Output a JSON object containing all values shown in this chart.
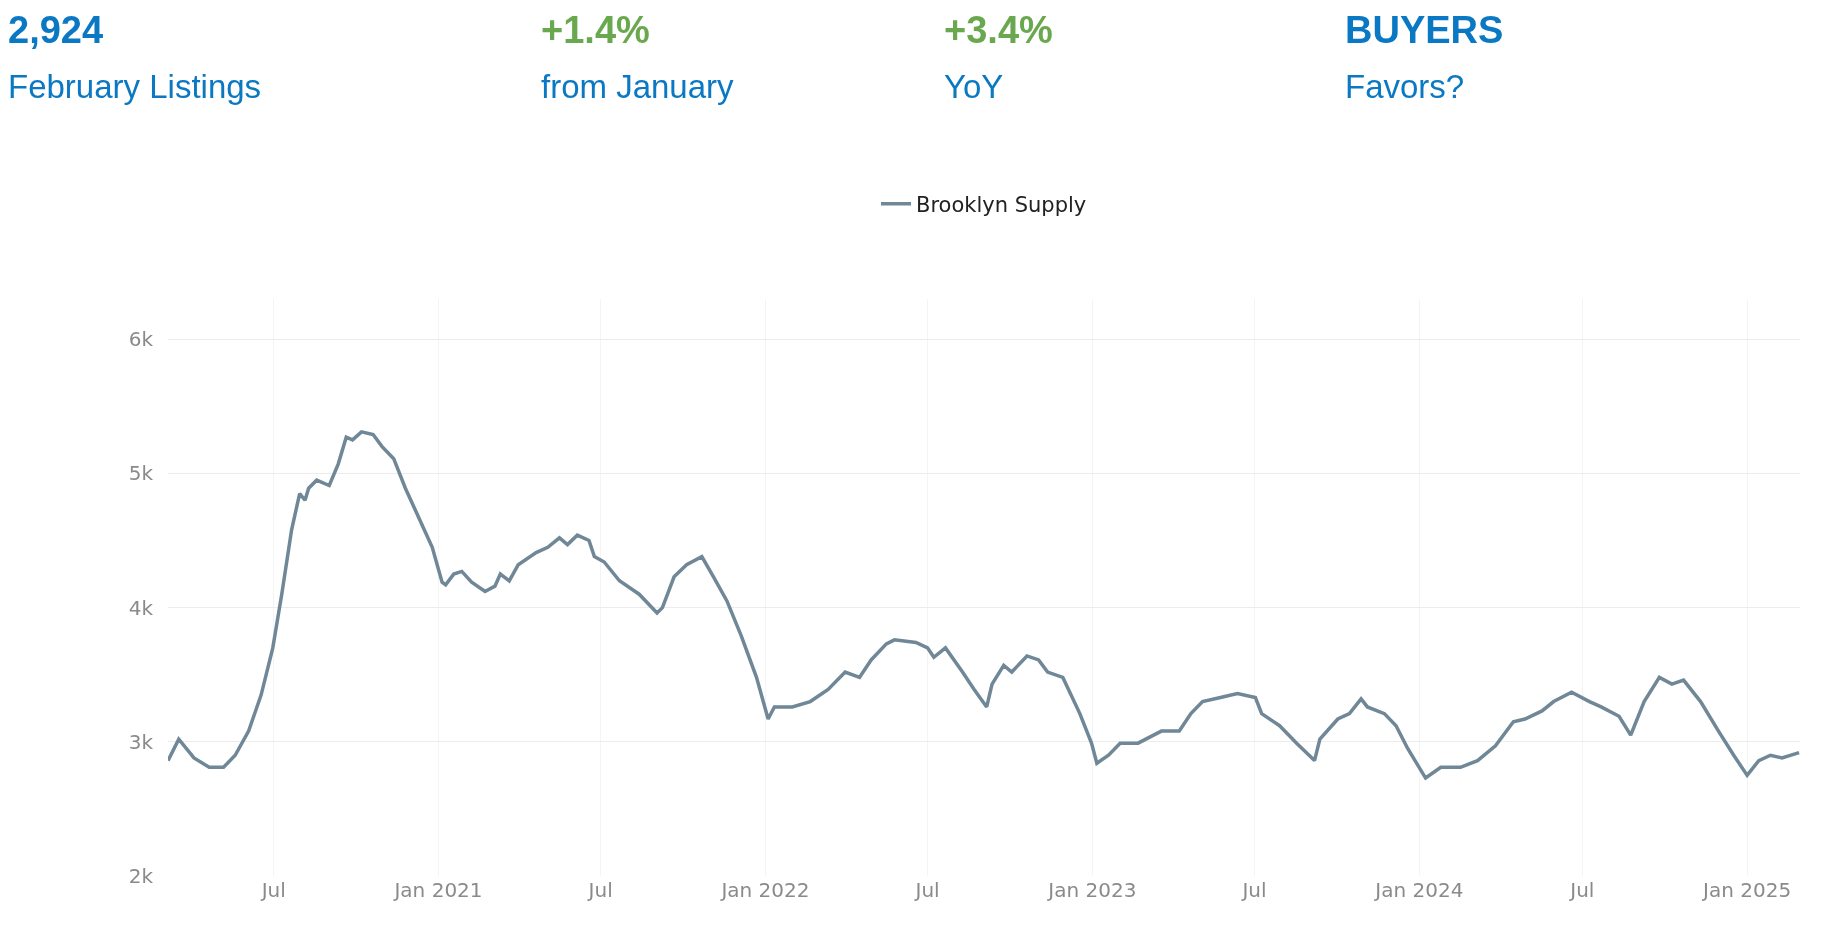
{
  "chart_data": {
    "type": "line",
    "annotations": [
      "2,924",
      "February Listings",
      "+1.4%",
      "from January",
      "+3.4%",
      "YoY",
      "BUYERS",
      "Favors?"
    ],
    "x": [
      "2020-03-05",
      "2020-03-17",
      "2020-04-03",
      "2020-04-20",
      "2020-05-06",
      "2020-05-19",
      "2020-06-03",
      "2020-06-17",
      "2020-06-30",
      "2020-07-10",
      "2020-07-21",
      "2020-07-30",
      "2020-08-05",
      "2020-08-09",
      "2020-08-18",
      "2020-09-01",
      "2020-09-11",
      "2020-09-20",
      "2020-09-27",
      "2020-10-07",
      "2020-10-20",
      "2020-10-30",
      "2020-11-12",
      "2020-11-25",
      "2020-12-10",
      "2020-12-25",
      "2021-01-05",
      "2021-01-09",
      "2021-01-18",
      "2021-01-27",
      "2021-02-07",
      "2021-02-22",
      "2021-03-05",
      "2021-03-11",
      "2021-03-21",
      "2021-03-31",
      "2021-04-20",
      "2021-05-03",
      "2021-05-16",
      "2021-05-25",
      "2021-06-05",
      "2021-06-18",
      "2021-06-24",
      "2021-07-05",
      "2021-07-22",
      "2021-08-13",
      "2021-09-02",
      "2021-09-08",
      "2021-09-21",
      "2021-10-05",
      "2021-10-22",
      "2021-11-04",
      "2021-11-19",
      "2021-12-05",
      "2021-12-22",
      "2022-01-04",
      "2022-01-11",
      "2022-01-31",
      "2022-02-20",
      "2022-03-12",
      "2022-03-31",
      "2022-04-16",
      "2022-04-29",
      "2022-05-16",
      "2022-05-25",
      "2022-06-18",
      "2022-07-01",
      "2022-07-08",
      "2022-07-21",
      "2022-08-09",
      "2022-08-22",
      "2022-09-05",
      "2022-09-11",
      "2022-09-24",
      "2022-10-03",
      "2022-10-20",
      "2022-11-02",
      "2022-11-12",
      "2022-11-29",
      "2022-12-18",
      "2022-12-31",
      "2023-01-06",
      "2023-01-19",
      "2023-02-01",
      "2023-02-21",
      "2023-03-19",
      "2023-04-08",
      "2023-04-21",
      "2023-05-04",
      "2023-05-24",
      "2023-06-12",
      "2023-07-02",
      "2023-07-09",
      "2023-07-29",
      "2023-08-17",
      "2023-09-06",
      "2023-09-12",
      "2023-10-02",
      "2023-10-15",
      "2023-10-28",
      "2023-11-04",
      "2023-11-23",
      "2023-12-06",
      "2023-12-19",
      "2024-01-08",
      "2024-01-25",
      "2024-02-16",
      "2024-03-06",
      "2024-03-26",
      "2024-04-15",
      "2024-04-28",
      "2024-05-17",
      "2024-05-30",
      "2024-06-19",
      "2024-07-09",
      "2024-07-22",
      "2024-08-11",
      "2024-08-24",
      "2024-09-08",
      "2024-09-25",
      "2024-10-09",
      "2024-10-22",
      "2024-11-10",
      "2024-11-30",
      "2024-12-17",
      "2025-01-01",
      "2025-01-14",
      "2025-01-27",
      "2025-02-09",
      "2025-02-28"
    ],
    "series": [
      {
        "name": "Brooklyn Supply",
        "color": "#6f8796",
        "values": [
          2860,
          3020,
          2880,
          2810,
          2810,
          2900,
          3080,
          3350,
          3700,
          4100,
          4580,
          4850,
          4800,
          4890,
          4950,
          4910,
          5070,
          5270,
          5250,
          5310,
          5290,
          5200,
          5110,
          4890,
          4670,
          4450,
          4190,
          4170,
          4250,
          4270,
          4190,
          4120,
          4160,
          4250,
          4200,
          4320,
          4410,
          4450,
          4520,
          4470,
          4540,
          4500,
          4380,
          4340,
          4200,
          4100,
          3960,
          4000,
          4230,
          4320,
          4380,
          4230,
          4050,
          3790,
          3480,
          3170,
          3260,
          3260,
          3300,
          3390,
          3520,
          3480,
          3610,
          3730,
          3760,
          3740,
          3700,
          3630,
          3700,
          3520,
          3390,
          3260,
          3430,
          3570,
          3520,
          3640,
          3610,
          3520,
          3480,
          3210,
          2990,
          2840,
          2900,
          2990,
          2990,
          3080,
          3080,
          3210,
          3300,
          3330,
          3360,
          3330,
          3210,
          3120,
          2990,
          2860,
          3020,
          3170,
          3210,
          3320,
          3260,
          3210,
          3120,
          2950,
          2730,
          2810,
          2810,
          2860,
          2970,
          3150,
          3170,
          3230,
          3300,
          3370,
          3300,
          3260,
          3190,
          3050,
          3300,
          3480,
          3430,
          3460,
          3300,
          3080,
          2900,
          2750,
          2860,
          2900,
          2880,
          2920
        ]
      }
    ],
    "xlim": [
      "2020-03-05",
      "2025-03-01"
    ],
    "xticks": [
      {
        "value": "2020-07-01",
        "label": "Jul"
      },
      {
        "value": "2021-01-01",
        "label": "Jan 2021"
      },
      {
        "value": "2021-07-01",
        "label": "Jul"
      },
      {
        "value": "2022-01-01",
        "label": "Jan 2022"
      },
      {
        "value": "2022-07-01",
        "label": "Jul"
      },
      {
        "value": "2023-01-01",
        "label": "Jan 2023"
      },
      {
        "value": "2023-07-01",
        "label": "Jul"
      },
      {
        "value": "2024-01-01",
        "label": "Jan 2024"
      },
      {
        "value": "2024-07-01",
        "label": "Jul"
      },
      {
        "value": "2025-01-01",
        "label": "Jan 2025"
      }
    ],
    "ylim": [
      2000,
      6300
    ],
    "yticks": [
      {
        "value": 2000,
        "label": "2k"
      },
      {
        "value": 3000,
        "label": "3k"
      },
      {
        "value": 4000,
        "label": "4k"
      },
      {
        "value": 5000,
        "label": "5k"
      },
      {
        "value": 6000,
        "label": "6k"
      }
    ],
    "grid": true,
    "legend": "top",
    "marker": "none",
    "line_style": "solid"
  }
}
